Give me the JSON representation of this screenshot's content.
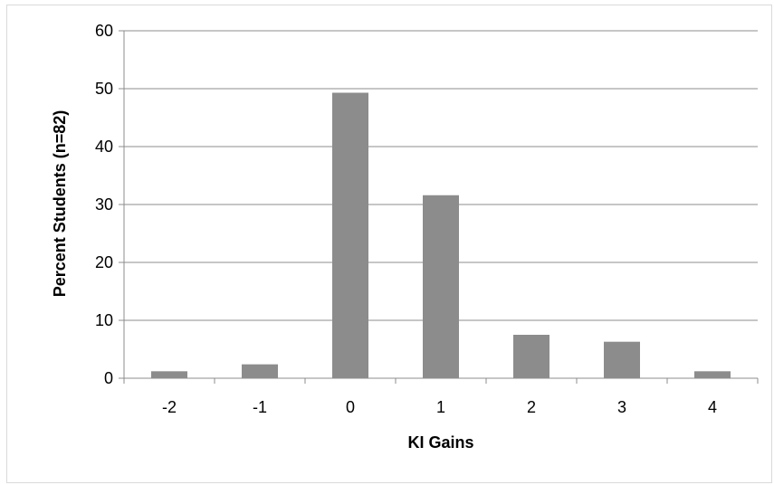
{
  "chart_data": {
    "type": "bar",
    "title": "",
    "xlabel": "KI Gains",
    "ylabel": "Percent  Students (n=82)",
    "categories": [
      "-2",
      "-1",
      "0",
      "1",
      "2",
      "3",
      "4"
    ],
    "values": [
      1.2,
      2.4,
      49.3,
      31.6,
      7.5,
      6.3,
      1.2
    ],
    "ylim": [
      0,
      60
    ],
    "yticks": [
      0,
      10,
      20,
      30,
      40,
      50,
      60
    ],
    "grid": true,
    "legend": "none",
    "bar_color": "#8c8c8c",
    "grid_color": "#8c8c8c",
    "axis_color": "#8c8c8c"
  }
}
